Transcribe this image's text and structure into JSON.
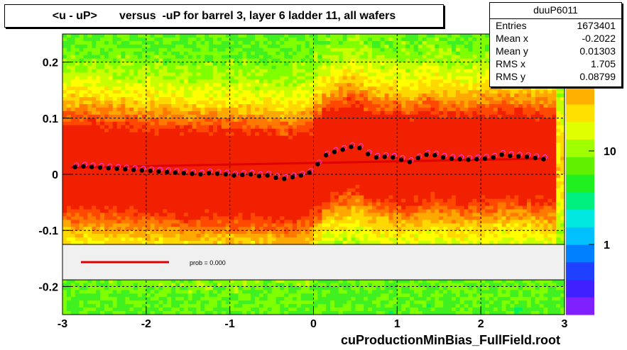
{
  "title": "<u - uP>       versus  -uP for barrel 3, layer 6 ladder 11, all wafers",
  "footer": "cuProductionMinBias_FullField.root",
  "stats": {
    "name": "duuP6011",
    "rows": [
      {
        "label": "Entries",
        "value": "1673401"
      },
      {
        "label": "Mean x",
        "value": "-0.2022"
      },
      {
        "label": "Mean y",
        "value": "0.01303"
      },
      {
        "label": "RMS x",
        "value": "1.705"
      },
      {
        "label": "RMS y",
        "value": "0.08799"
      }
    ]
  },
  "fit_label": "prob = 0.000",
  "colors": {
    "fit_line": "#e00000",
    "profile_black": "#000000",
    "profile_magenta": "#ff40ff",
    "legend_band": "#f0f0f0"
  },
  "chart_data": {
    "type": "heatmap",
    "xlim": [
      -3,
      3
    ],
    "ylim": [
      -0.25,
      0.25
    ],
    "x_ticks": [
      "-3",
      "-2",
      "-1",
      "0",
      "1",
      "2",
      "3"
    ],
    "y_ticks": [
      "-0.2",
      "-0.1",
      "0",
      "0.1",
      "0.2"
    ],
    "y_tick_values": [
      -0.2,
      -0.1,
      0,
      0.1,
      0.2
    ],
    "grid": true,
    "colorbar_ticks": [
      "1",
      "10"
    ],
    "colorbar_scale": "log",
    "fit_line": {
      "x": [
        -2.9,
        2.75
      ],
      "y": [
        0.012,
        0.028
      ]
    },
    "profile": {
      "x": [
        -2.85,
        -2.75,
        -2.65,
        -2.55,
        -2.45,
        -2.35,
        -2.25,
        -2.15,
        -2.05,
        -1.95,
        -1.85,
        -1.75,
        -1.65,
        -1.55,
        -1.45,
        -1.35,
        -1.25,
        -1.15,
        -1.05,
        -0.95,
        -0.85,
        -0.75,
        -0.65,
        -0.55,
        -0.45,
        -0.35,
        -0.25,
        -0.15,
        -0.05,
        0.05,
        0.15,
        0.25,
        0.35,
        0.45,
        0.55,
        0.65,
        0.75,
        0.85,
        0.95,
        1.05,
        1.15,
        1.25,
        1.35,
        1.45,
        1.55,
        1.65,
        1.75,
        1.85,
        1.95,
        2.05,
        2.15,
        2.25,
        2.35,
        2.45,
        2.55,
        2.65,
        2.75
      ],
      "y": [
        0.013,
        0.014,
        0.013,
        0.012,
        0.011,
        0.01,
        0.009,
        0.008,
        0.007,
        0.006,
        0.005,
        0.004,
        0.003,
        0.002,
        0.001,
        0.0,
        0.002,
        0.001,
        0.0,
        -0.002,
        -0.001,
        0.0,
        -0.003,
        -0.002,
        -0.006,
        -0.008,
        -0.005,
        -0.002,
        0.003,
        0.018,
        0.034,
        0.04,
        0.044,
        0.049,
        0.047,
        0.036,
        0.03,
        0.031,
        0.03,
        0.026,
        0.022,
        0.029,
        0.035,
        0.034,
        0.03,
        0.028,
        0.027,
        0.026,
        0.027,
        0.028,
        0.03,
        0.035,
        0.033,
        0.032,
        0.031,
        0.029,
        0.027
      ]
    }
  }
}
